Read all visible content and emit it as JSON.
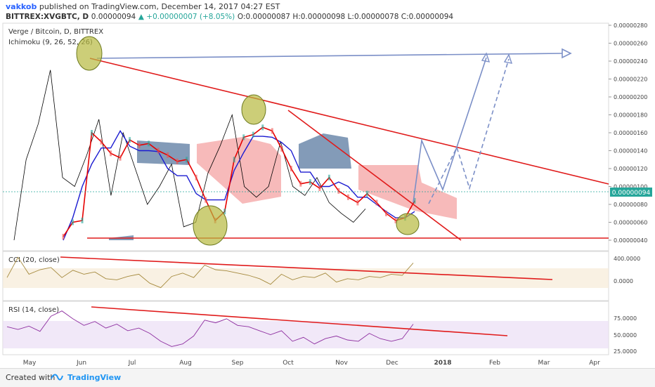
{
  "header": {
    "author": "vakkob",
    "published": "published on TradingView.com, December 14, 2017 04:27 EST",
    "symbol": "BITTREX:XVGBTC, D",
    "last": "0.00000094",
    "change_up": "▲ +0.00000007 (+8.05%)",
    "ohlc": "O:0.00000087 H:0.00000098 L:0.00000078 C:0.00000094"
  },
  "main_panel": {
    "title": "Verge / Bitcoin, D, BITTREX",
    "indicator": "Ichimoku (9, 26, 52, 26)",
    "price_badge": "0.00000094"
  },
  "cci_panel": {
    "label": "CCI (20, close)"
  },
  "rsi_panel": {
    "label": "RSI (14, close)"
  },
  "footer": {
    "created": "Created with",
    "brand": "TradingView"
  },
  "colors": {
    "tenkan": "#e60000",
    "kijun": "#1b1bd1",
    "lagging": "#000000",
    "cloud_bear": "#f4a3a3",
    "cloud_bull": "#5a7aa0",
    "trend": "#e01b1b",
    "arrow": "#7b8fc7",
    "cci": "#a58a3e",
    "rsi": "#8e2fa0",
    "rsi_band": "#ece0f6"
  },
  "chart_data": [
    {
      "type": "line",
      "title": "Verge / Bitcoin, D, BITTREX",
      "x_ticks": [
        "May",
        "Jun",
        "Jul",
        "Aug",
        "Sep",
        "Oct",
        "Nov",
        "Dec",
        "2018",
        "Feb",
        "Mar",
        "Apr"
      ],
      "y_ticks": [
        "0.00000280",
        "0.00000260",
        "0.00000240",
        "0.00000220",
        "0.00000200",
        "0.00000180",
        "0.00000160",
        "0.00000140",
        "0.00000120",
        "0.00000100",
        "0.00000080",
        "0.00000060",
        "0.00000040"
      ],
      "ylim": [
        3e-07,
        2.85e-06
      ],
      "last_price": 9.4e-07,
      "series": [
        {
          "name": "tenkan",
          "values": [
            4.4e-07,
            6e-07,
            6.2e-07,
            1.6e-06,
            1.5e-06,
            1.37e-06,
            1.32e-06,
            1.52e-06,
            1.46e-06,
            1.48e-06,
            1.4e-06,
            1.35e-06,
            1.28e-06,
            1.3e-06,
            1.1e-06,
            8.5e-07,
            6.2e-07,
            7.2e-07,
            1.3e-06,
            1.55e-06,
            1.58e-06,
            1.66e-06,
            1.62e-06,
            1.42e-06,
            1.2e-06,
            1.03e-06,
            1.05e-06,
            9.8e-07,
            1.1e-06,
            9.5e-07,
            8.8e-07,
            8.2e-07,
            9.2e-07,
            8.2e-07,
            7e-07,
            6.2e-07,
            6.5e-07,
            8.4e-07
          ]
        },
        {
          "name": "kijun",
          "values": [
            4e-07,
            6.5e-07,
            1e-06,
            1.25e-06,
            1.43e-06,
            1.43e-06,
            1.62e-06,
            1.45e-06,
            1.4e-06,
            1.4e-06,
            1.39e-06,
            1.2e-06,
            1.12e-06,
            1.12e-06,
            9.2e-07,
            8.5e-07,
            8.5e-07,
            8.5e-07,
            1.18e-06,
            1.38e-06,
            1.56e-06,
            1.56e-06,
            1.55e-06,
            1.49e-06,
            1.4e-06,
            1.16e-06,
            1.16e-06,
            1e-06,
            1e-06,
            1.05e-06,
            1e-06,
            8.8e-07,
            8.8e-07,
            8e-07,
            7.2e-07,
            6.5e-07,
            6.5e-07,
            7.2e-07
          ]
        },
        {
          "name": "lagging",
          "values": [
            4e-07,
            1.3e-06,
            1.7e-06,
            2.3e-06,
            1.1e-06,
            1e-06,
            1.35e-06,
            1.75e-06,
            9e-07,
            1.6e-06,
            1.2e-06,
            8e-07,
            1e-06,
            1.25e-06,
            5.5e-07,
            6e-07,
            1.15e-06,
            1.45e-06,
            1.8e-06,
            1e-06,
            8.8e-07,
            1e-06,
            1.5e-06,
            1e-06,
            9e-07,
            1.1e-06,
            8.2e-07,
            7e-07,
            6e-07,
            7.5e-07
          ]
        },
        {
          "name": "cci",
          "values": [
            60,
            420,
            120,
            200,
            240,
            60,
            190,
            120,
            160,
            40,
            20,
            80,
            120,
            -40,
            -120,
            80,
            140,
            60,
            280,
            200,
            180,
            140,
            100,
            40,
            -60,
            120,
            20,
            80,
            60,
            140,
            -20,
            40,
            20,
            80,
            60,
            120,
            100,
            320
          ]
        },
        {
          "name": "rsi",
          "values": [
            62,
            58,
            63,
            55,
            78,
            86,
            74,
            64,
            70,
            60,
            66,
            56,
            60,
            52,
            40,
            32,
            36,
            48,
            72,
            68,
            74,
            64,
            62,
            56,
            50,
            56,
            40,
            46,
            36,
            44,
            48,
            42,
            40,
            52,
            44,
            40,
            44,
            66
          ]
        }
      ],
      "cci_ticks": [
        "400.0000",
        "0.0000"
      ],
      "rsi_ticks": [
        "75.0000",
        "50.0000",
        "25.0000"
      ]
    }
  ]
}
